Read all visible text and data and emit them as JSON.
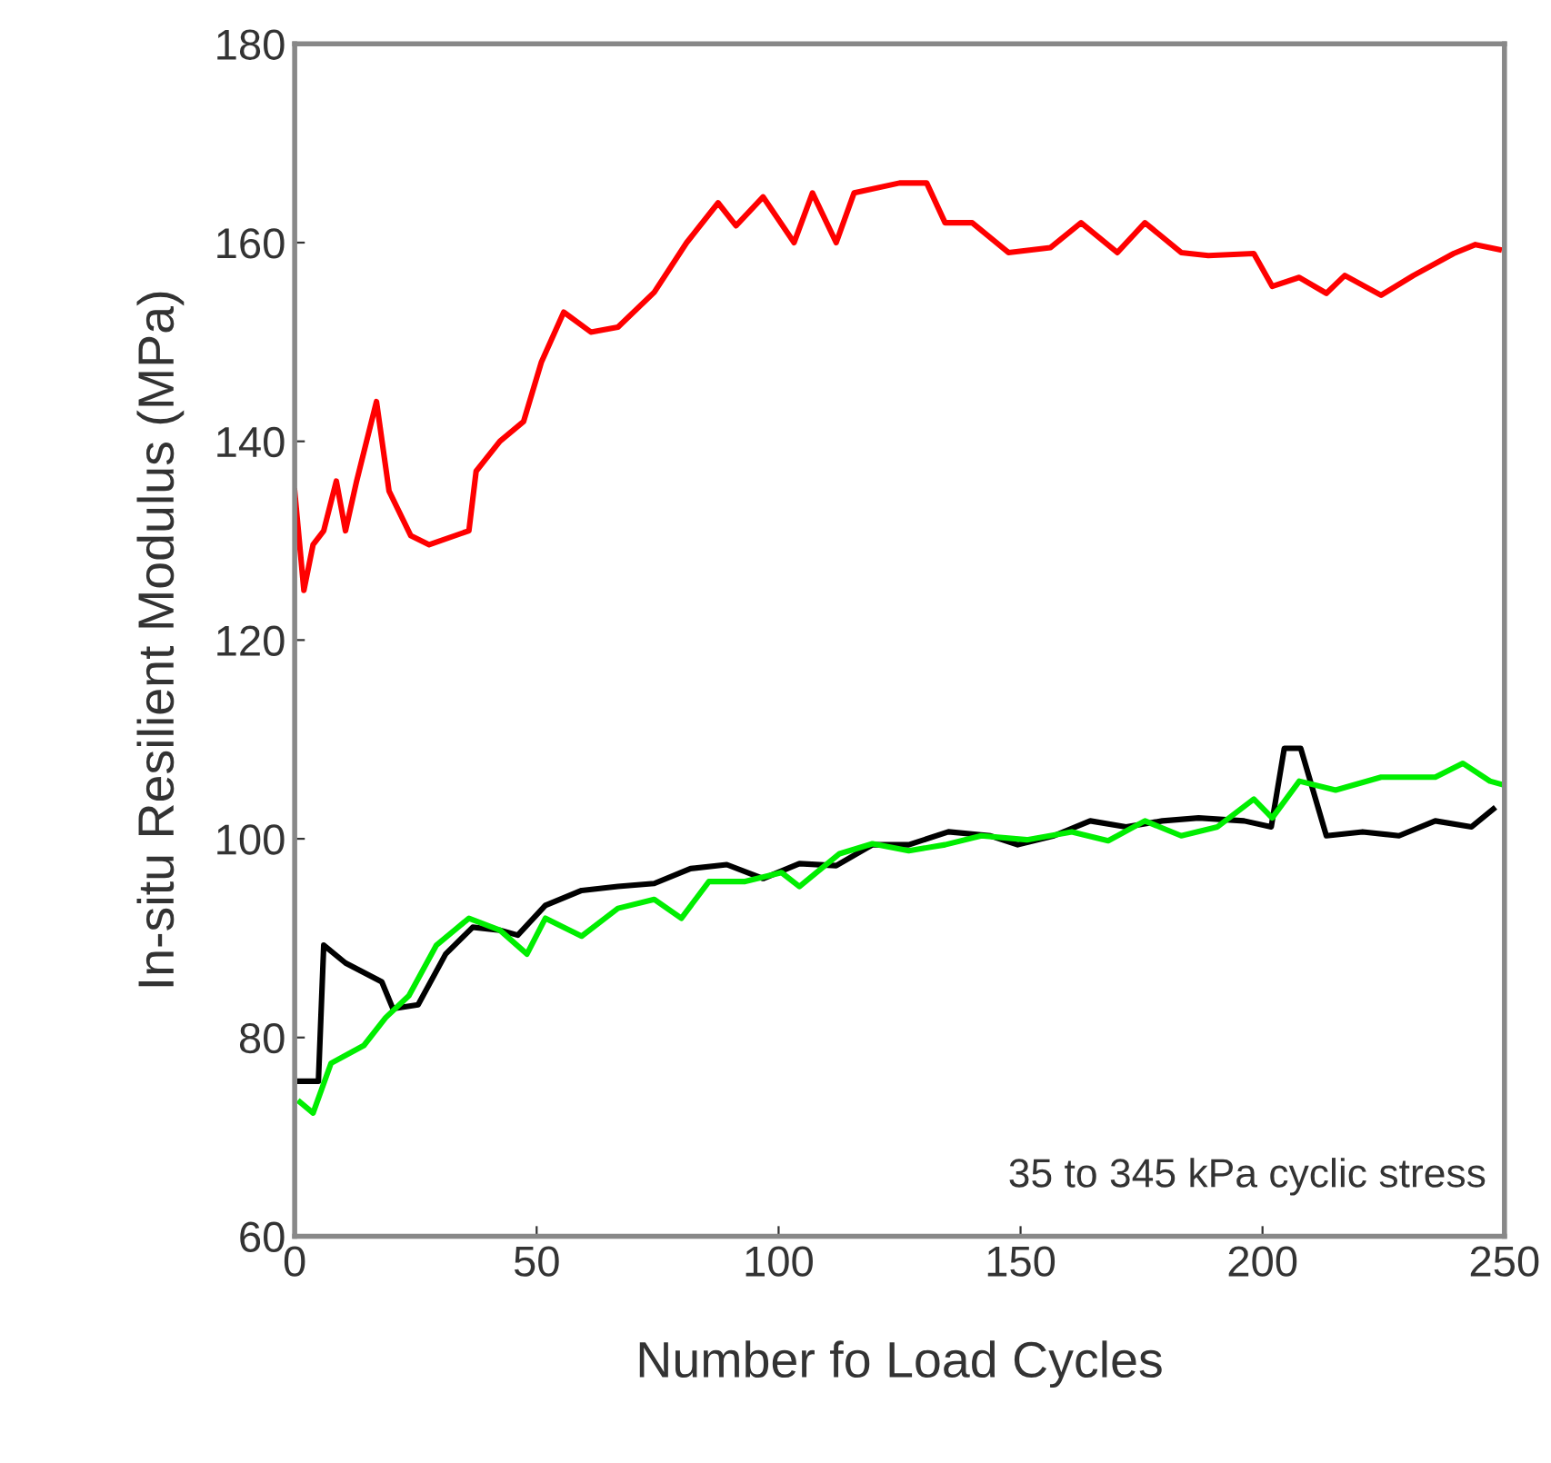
{
  "chart_data": {
    "type": "line",
    "xlabel": "Number fo Load Cycles",
    "ylabel": "In-situ Resilient Modulus (MPa)",
    "annotations": [
      "35 to 345 kPa cyclic stress"
    ],
    "xlim": [
      0,
      250
    ],
    "ylim": [
      60,
      180
    ],
    "xticks": [
      0,
      50,
      100,
      150,
      200,
      250
    ],
    "yticks": [
      60,
      80,
      100,
      120,
      140,
      160,
      180
    ],
    "grid": false,
    "series": [
      {
        "color": "#ff0000",
        "x": [
          0,
          1.9,
          3.8,
          6,
          8.6,
          10.5,
          12.8,
          16.9,
          19.5,
          24,
          27.8,
          36,
          37.5,
          42.4,
          47.3,
          51,
          55.6,
          61.2,
          66.8,
          74.3,
          81,
          87.5,
          91.2,
          96.8,
          103.2,
          107,
          111.9,
          115.6,
          125,
          130.6,
          134.4,
          140,
          147.5,
          156.2,
          162.5,
          170,
          175.7,
          183.2,
          188.8,
          198.2,
          202,
          207.6,
          213.2,
          217,
          224.5,
          231.2,
          239.5,
          244,
          248.9
        ],
        "values": [
          135,
          125,
          129.6,
          131,
          136,
          131,
          136,
          144,
          135,
          130.5,
          129.6,
          131,
          137,
          140,
          142,
          148,
          153,
          151,
          151.5,
          155,
          160,
          164,
          161.7,
          164.6,
          160,
          165,
          160,
          165,
          166,
          166,
          162,
          162,
          159,
          159.5,
          162,
          159,
          162,
          159,
          158.7,
          158.9,
          155.6,
          156.5,
          154.9,
          156.7,
          154.7,
          156.7,
          158.9,
          159.8,
          159.3
        ]
      },
      {
        "color": "#000000",
        "x": [
          1.1,
          4.9,
          6,
          10.5,
          18,
          20.3,
          25.5,
          31.2,
          36.8,
          42.4,
          46.1,
          51.8,
          59.3,
          66.8,
          74.3,
          81.8,
          89.3,
          96.8,
          104.3,
          111.9,
          119.4,
          126.9,
          135.1,
          143.8,
          149.4,
          156.9,
          164.4,
          171.8,
          179.3,
          186.8,
          196.2,
          201.8,
          204.5,
          207.9,
          213.2,
          220.7,
          228.2,
          235.7,
          243.2,
          247.7
        ],
        "values": [
          75.6,
          75.6,
          89.3,
          87.5,
          85.6,
          82.9,
          83.3,
          88.4,
          91.1,
          90.8,
          90.3,
          93.3,
          94.8,
          95.2,
          95.5,
          97,
          97.4,
          96,
          97.5,
          97.3,
          99.4,
          99.4,
          100.7,
          100.3,
          99.4,
          100.3,
          101.8,
          101.2,
          101.8,
          102.1,
          101.8,
          101.2,
          109.1,
          109.1,
          100.3,
          100.7,
          100.3,
          101.8,
          101.2,
          103
        ]
      },
      {
        "color": "#00ee00",
        "x": [
          1.1,
          3.8,
          7.5,
          14.3,
          18.8,
          23.6,
          29.3,
          36,
          42.4,
          48,
          51.8,
          59.3,
          66.8,
          74.3,
          79.9,
          85.6,
          93.1,
          100.6,
          104.3,
          112.6,
          119.4,
          126.9,
          134.4,
          141.9,
          151.3,
          160.6,
          168.1,
          175.7,
          183.2,
          190.7,
          198.2,
          202,
          207.6,
          215.1,
          224.5,
          235.7,
          241.4,
          247,
          250
        ],
        "values": [
          73.5,
          72.4,
          77.4,
          79.2,
          82,
          84.2,
          89.3,
          92,
          90.8,
          88.4,
          92,
          90.2,
          93,
          93.9,
          92,
          95.7,
          95.7,
          96.6,
          95.2,
          98.5,
          99.5,
          98.8,
          99.4,
          100.3,
          99.9,
          100.7,
          99.8,
          101.8,
          100.3,
          101.2,
          104,
          102.1,
          105.8,
          104.9,
          106.2,
          106.2,
          107.6,
          105.8,
          105.4
        ]
      }
    ]
  }
}
